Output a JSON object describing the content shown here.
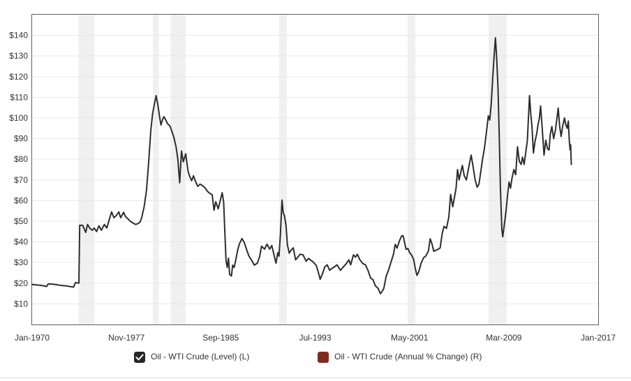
{
  "colors": {
    "line": "#2d2d2d",
    "grid": "#e9e9e9",
    "recession_band": "#f0f0f0",
    "plot_border": "#5f5f5f",
    "axis_text": "#333333",
    "checkbox_fill": "#262626",
    "checkbox_check": "#ffffff",
    "annual_change_swatch": "#7c2d1e",
    "divider": "#dcdcdc"
  },
  "legend": {
    "items": [
      {
        "label": "Oil - WTI Crude (Level) (L)",
        "checked": true,
        "control": "checkbox",
        "swatch_color": "#262626"
      },
      {
        "label": "Oil - WTI Crude (Annual % Change) (R)",
        "checked": false,
        "control": "swatch",
        "swatch_color": "#7c2d1e"
      }
    ]
  },
  "chart_data": {
    "type": "line",
    "title": "",
    "xlabel": "",
    "ylabel": "",
    "grid": "horizontal-only",
    "legend_position": "bottom",
    "x_axis": {
      "range": [
        1970,
        2017
      ],
      "ticks": [
        {
          "pos": 1970.0,
          "label": "Jan-1970"
        },
        {
          "pos": 1977.833,
          "label": "Nov-1977"
        },
        {
          "pos": 1985.667,
          "label": "Sep-1985"
        },
        {
          "pos": 1993.5,
          "label": "Jul-1993"
        },
        {
          "pos": 2001.333,
          "label": "May-2001"
        },
        {
          "pos": 2009.167,
          "label": "Mar-2009"
        },
        {
          "pos": 2017.0,
          "label": "Jan-2017"
        }
      ]
    },
    "y_axis": {
      "range": [
        0,
        150
      ],
      "tick_prefix": "$",
      "ticks": [
        10,
        20,
        30,
        40,
        50,
        60,
        70,
        80,
        90,
        100,
        110,
        120,
        130,
        140
      ]
    },
    "recession_bands": [
      [
        1973.85,
        1975.19
      ],
      [
        1980.03,
        1980.52
      ],
      [
        1981.5,
        1982.75
      ],
      [
        1990.52,
        1991.15
      ],
      [
        2001.18,
        2001.82
      ],
      [
        2007.9,
        2009.41
      ]
    ],
    "series": [
      {
        "name": "Oil - WTI Crude (Level) (L)",
        "color": "#2d2d2d",
        "visible": true,
        "points": [
          [
            1970.0,
            19.4
          ],
          [
            1970.3,
            19.2
          ],
          [
            1970.6,
            19.0
          ],
          [
            1970.9,
            18.8
          ],
          [
            1971.2,
            18.4
          ],
          [
            1971.35,
            19.7
          ],
          [
            1971.7,
            19.5
          ],
          [
            1972.0,
            19.3
          ],
          [
            1972.3,
            19.0
          ],
          [
            1972.6,
            18.8
          ],
          [
            1972.9,
            18.6
          ],
          [
            1973.2,
            18.3
          ],
          [
            1973.45,
            18.1
          ],
          [
            1973.6,
            20.3
          ],
          [
            1973.88,
            20.0
          ],
          [
            1973.95,
            48.0
          ],
          [
            1974.2,
            48.0
          ],
          [
            1974.45,
            44.6
          ],
          [
            1974.6,
            48.4
          ],
          [
            1974.8,
            46.5
          ],
          [
            1975.0,
            45.6
          ],
          [
            1975.15,
            46.7
          ],
          [
            1975.35,
            45.0
          ],
          [
            1975.55,
            47.8
          ],
          [
            1975.75,
            45.6
          ],
          [
            1976.0,
            48.4
          ],
          [
            1976.2,
            46.7
          ],
          [
            1976.4,
            50.6
          ],
          [
            1976.6,
            54.5
          ],
          [
            1976.8,
            51.7
          ],
          [
            1977.0,
            52.8
          ],
          [
            1977.2,
            54.5
          ],
          [
            1977.35,
            51.7
          ],
          [
            1977.6,
            54.3
          ],
          [
            1977.75,
            52.3
          ],
          [
            1977.95,
            51.2
          ],
          [
            1978.15,
            50.0
          ],
          [
            1978.35,
            49.2
          ],
          [
            1978.6,
            48.4
          ],
          [
            1978.8,
            48.9
          ],
          [
            1978.95,
            49.5
          ],
          [
            1979.1,
            51.7
          ],
          [
            1979.3,
            57.0
          ],
          [
            1979.5,
            65.0
          ],
          [
            1979.7,
            80.4
          ],
          [
            1979.85,
            93.8
          ],
          [
            1980.0,
            102.0
          ],
          [
            1980.15,
            106.5
          ],
          [
            1980.3,
            110.8
          ],
          [
            1980.45,
            106.0
          ],
          [
            1980.6,
            100.0
          ],
          [
            1980.7,
            96.6
          ],
          [
            1980.85,
            99.5
          ],
          [
            1980.95,
            100.6
          ],
          [
            1981.1,
            99.0
          ],
          [
            1981.25,
            97.2
          ],
          [
            1981.45,
            96.0
          ],
          [
            1981.6,
            93.5
          ],
          [
            1981.75,
            91.0
          ],
          [
            1981.95,
            86.0
          ],
          [
            1982.1,
            80.0
          ],
          [
            1982.25,
            68.6
          ],
          [
            1982.4,
            84.0
          ],
          [
            1982.55,
            78.8
          ],
          [
            1982.75,
            82.6
          ],
          [
            1982.95,
            74.0
          ],
          [
            1983.1,
            71.5
          ],
          [
            1983.25,
            69.6
          ],
          [
            1983.4,
            72.0
          ],
          [
            1983.55,
            69.5
          ],
          [
            1983.75,
            66.9
          ],
          [
            1983.95,
            67.9
          ],
          [
            1984.15,
            67.2
          ],
          [
            1984.35,
            66.2
          ],
          [
            1984.55,
            64.5
          ],
          [
            1984.75,
            63.5
          ],
          [
            1984.95,
            62.8
          ],
          [
            1985.1,
            55.3
          ],
          [
            1985.25,
            59.4
          ],
          [
            1985.45,
            56.0
          ],
          [
            1985.6,
            59.5
          ],
          [
            1985.78,
            63.8
          ],
          [
            1985.9,
            59.4
          ],
          [
            1986.0,
            45.0
          ],
          [
            1986.1,
            31.0
          ],
          [
            1986.2,
            27.6
          ],
          [
            1986.3,
            32.1
          ],
          [
            1986.4,
            24.2
          ],
          [
            1986.55,
            23.5
          ],
          [
            1986.65,
            28.7
          ],
          [
            1986.78,
            27.6
          ],
          [
            1986.9,
            31.0
          ],
          [
            1987.05,
            35.5
          ],
          [
            1987.2,
            38.9
          ],
          [
            1987.42,
            41.6
          ],
          [
            1987.6,
            39.9
          ],
          [
            1987.8,
            36.5
          ],
          [
            1988.0,
            33.1
          ],
          [
            1988.2,
            31.4
          ],
          [
            1988.45,
            28.7
          ],
          [
            1988.7,
            29.7
          ],
          [
            1988.9,
            33.0
          ],
          [
            1989.05,
            37.9
          ],
          [
            1989.3,
            36.5
          ],
          [
            1989.5,
            38.9
          ],
          [
            1989.72,
            36.5
          ],
          [
            1989.9,
            38.2
          ],
          [
            1990.05,
            34.5
          ],
          [
            1990.25,
            29.7
          ],
          [
            1990.4,
            34.8
          ],
          [
            1990.5,
            33.1
          ],
          [
            1990.62,
            44.0
          ],
          [
            1990.75,
            60.2
          ],
          [
            1990.85,
            54.0
          ],
          [
            1990.95,
            52.6
          ],
          [
            1991.08,
            48.1
          ],
          [
            1991.2,
            38.5
          ],
          [
            1991.35,
            34.5
          ],
          [
            1991.5,
            36.0
          ],
          [
            1991.68,
            37.1
          ],
          [
            1991.88,
            31.3
          ],
          [
            1992.05,
            32.5
          ],
          [
            1992.25,
            34.0
          ],
          [
            1992.5,
            33.7
          ],
          [
            1992.75,
            30.6
          ],
          [
            1992.95,
            32.0
          ],
          [
            1993.15,
            31.0
          ],
          [
            1993.35,
            30.2
          ],
          [
            1993.6,
            28.5
          ],
          [
            1993.78,
            25.0
          ],
          [
            1993.92,
            21.9
          ],
          [
            1994.1,
            24.5
          ],
          [
            1994.3,
            27.9
          ],
          [
            1994.5,
            28.9
          ],
          [
            1994.7,
            26.2
          ],
          [
            1994.9,
            27.2
          ],
          [
            1995.1,
            27.9
          ],
          [
            1995.32,
            28.9
          ],
          [
            1995.6,
            26.2
          ],
          [
            1995.85,
            27.9
          ],
          [
            1996.05,
            29.2
          ],
          [
            1996.3,
            31.3
          ],
          [
            1996.45,
            28.9
          ],
          [
            1996.68,
            33.7
          ],
          [
            1996.85,
            32.6
          ],
          [
            1997.0,
            34.0
          ],
          [
            1997.2,
            31.5
          ],
          [
            1997.45,
            29.5
          ],
          [
            1997.68,
            28.9
          ],
          [
            1997.9,
            26.0
          ],
          [
            1998.1,
            22.5
          ],
          [
            1998.3,
            21.7
          ],
          [
            1998.5,
            18.7
          ],
          [
            1998.72,
            17.5
          ],
          [
            1998.92,
            14.9
          ],
          [
            1999.05,
            15.9
          ],
          [
            1999.2,
            17.5
          ],
          [
            1999.4,
            23.4
          ],
          [
            1999.6,
            26.5
          ],
          [
            1999.8,
            30.2
          ],
          [
            2000.0,
            34.0
          ],
          [
            2000.15,
            38.8
          ],
          [
            2000.3,
            37.0
          ],
          [
            2000.5,
            40.5
          ],
          [
            2000.68,
            42.9
          ],
          [
            2000.8,
            43.0
          ],
          [
            2000.95,
            39.0
          ],
          [
            2001.05,
            36.4
          ],
          [
            2001.2,
            36.8
          ],
          [
            2001.35,
            34.7
          ],
          [
            2001.5,
            33.7
          ],
          [
            2001.68,
            31.5
          ],
          [
            2001.82,
            27.0
          ],
          [
            2001.95,
            23.8
          ],
          [
            2002.1,
            25.5
          ],
          [
            2002.3,
            29.6
          ],
          [
            2002.5,
            32.3
          ],
          [
            2002.7,
            33.2
          ],
          [
            2002.9,
            35.5
          ],
          [
            2003.05,
            41.5
          ],
          [
            2003.2,
            39.0
          ],
          [
            2003.35,
            35.4
          ],
          [
            2003.55,
            36.0
          ],
          [
            2003.7,
            36.4
          ],
          [
            2003.88,
            37.1
          ],
          [
            2004.05,
            44.0
          ],
          [
            2004.2,
            47.5
          ],
          [
            2004.4,
            46.5
          ],
          [
            2004.6,
            52.0
          ],
          [
            2004.75,
            63.0
          ],
          [
            2004.92,
            57.0
          ],
          [
            2005.05,
            61.0
          ],
          [
            2005.2,
            66.0
          ],
          [
            2005.32,
            75.0
          ],
          [
            2005.45,
            70.0
          ],
          [
            2005.6,
            74.0
          ],
          [
            2005.72,
            77.0
          ],
          [
            2005.88,
            72.0
          ],
          [
            2006.05,
            70.0
          ],
          [
            2006.25,
            76.0
          ],
          [
            2006.45,
            82.0
          ],
          [
            2006.6,
            77.0
          ],
          [
            2006.78,
            70.0
          ],
          [
            2006.95,
            66.5
          ],
          [
            2007.1,
            68.0
          ],
          [
            2007.25,
            74.0
          ],
          [
            2007.4,
            80.0
          ],
          [
            2007.55,
            85.0
          ],
          [
            2007.7,
            92.0
          ],
          [
            2007.88,
            101.0
          ],
          [
            2008.0,
            99.0
          ],
          [
            2008.12,
            107.0
          ],
          [
            2008.25,
            120.0
          ],
          [
            2008.38,
            132.0
          ],
          [
            2008.47,
            138.8
          ],
          [
            2008.58,
            128.0
          ],
          [
            2008.68,
            115.0
          ],
          [
            2008.78,
            92.0
          ],
          [
            2008.88,
            66.0
          ],
          [
            2009.0,
            46.0
          ],
          [
            2009.08,
            42.5
          ],
          [
            2009.2,
            48.0
          ],
          [
            2009.35,
            55.0
          ],
          [
            2009.5,
            64.0
          ],
          [
            2009.6,
            69.0
          ],
          [
            2009.72,
            66.0
          ],
          [
            2009.85,
            71.0
          ],
          [
            2010.0,
            75.0
          ],
          [
            2010.15,
            72.5
          ],
          [
            2010.3,
            86.0
          ],
          [
            2010.45,
            79.0
          ],
          [
            2010.6,
            77.5
          ],
          [
            2010.72,
            81.0
          ],
          [
            2010.85,
            77.5
          ],
          [
            2011.0,
            84.0
          ],
          [
            2011.12,
            89.0
          ],
          [
            2011.3,
            110.8
          ],
          [
            2011.4,
            102.0
          ],
          [
            2011.5,
            96.0
          ],
          [
            2011.62,
            83.0
          ],
          [
            2011.75,
            88.5
          ],
          [
            2011.9,
            92.5
          ],
          [
            2012.0,
            96.5
          ],
          [
            2012.12,
            100.0
          ],
          [
            2012.22,
            105.8
          ],
          [
            2012.35,
            95.0
          ],
          [
            2012.5,
            82.0
          ],
          [
            2012.65,
            89.2
          ],
          [
            2012.8,
            85.0
          ],
          [
            2012.92,
            84.5
          ],
          [
            2013.02,
            92.0
          ],
          [
            2013.15,
            95.8
          ],
          [
            2013.3,
            90.0
          ],
          [
            2013.45,
            94.0
          ],
          [
            2013.58,
            100.0
          ],
          [
            2013.68,
            104.8
          ],
          [
            2013.8,
            96.0
          ],
          [
            2013.92,
            91.0
          ],
          [
            2014.05,
            96.0
          ],
          [
            2014.2,
            100.0
          ],
          [
            2014.3,
            97.0
          ],
          [
            2014.42,
            95.0
          ],
          [
            2014.52,
            98.5
          ],
          [
            2014.6,
            89.0
          ],
          [
            2014.67,
            84.5
          ],
          [
            2014.71,
            87.0
          ],
          [
            2014.77,
            77.5
          ]
        ]
      },
      {
        "name": "Oil - WTI Crude (Annual % Change) (R)",
        "color": "#7c2d1e",
        "visible": false,
        "points": []
      }
    ]
  }
}
